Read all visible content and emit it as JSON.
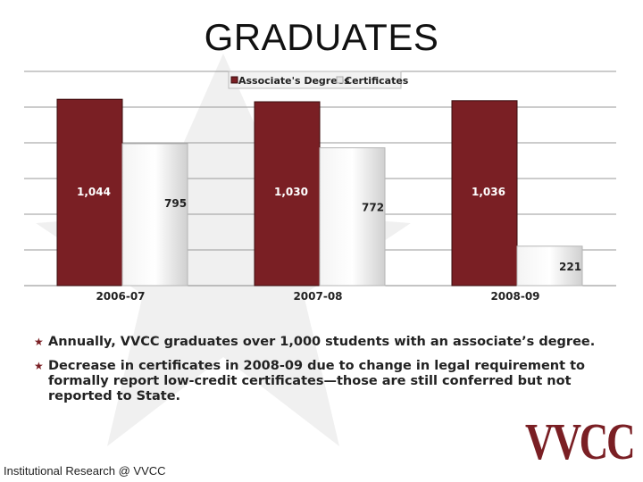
{
  "slide": {
    "title": "GRADUATES",
    "bullets": [
      "Annually, VVCC graduates over 1,000 students with an associate’s degree.",
      "Decrease in certificates in 2008-09 due to change in legal requirement to formally report low-credit certificates—those are still conferred but not reported to State."
    ],
    "footer": "Institutional Research @ VVCC",
    "logo_text": "VVCC"
  },
  "colors": {
    "associates": "#7a1f24",
    "certificates": "#e4e4e4",
    "bullet_marker": "#7a1f24"
  },
  "chart_data": {
    "type": "bar",
    "categories": [
      "2006-07",
      "2007-08",
      "2008-09"
    ],
    "series": [
      {
        "name": "Associate's Degrees",
        "values": [
          1044,
          1030,
          1036
        ],
        "labels": [
          "1,044",
          "1,030",
          "1,036"
        ]
      },
      {
        "name": "Certificates",
        "values": [
          795,
          772,
          221
        ],
        "labels": [
          "795",
          "772",
          "221"
        ]
      }
    ],
    "legend": "top-center",
    "grid": true
  }
}
